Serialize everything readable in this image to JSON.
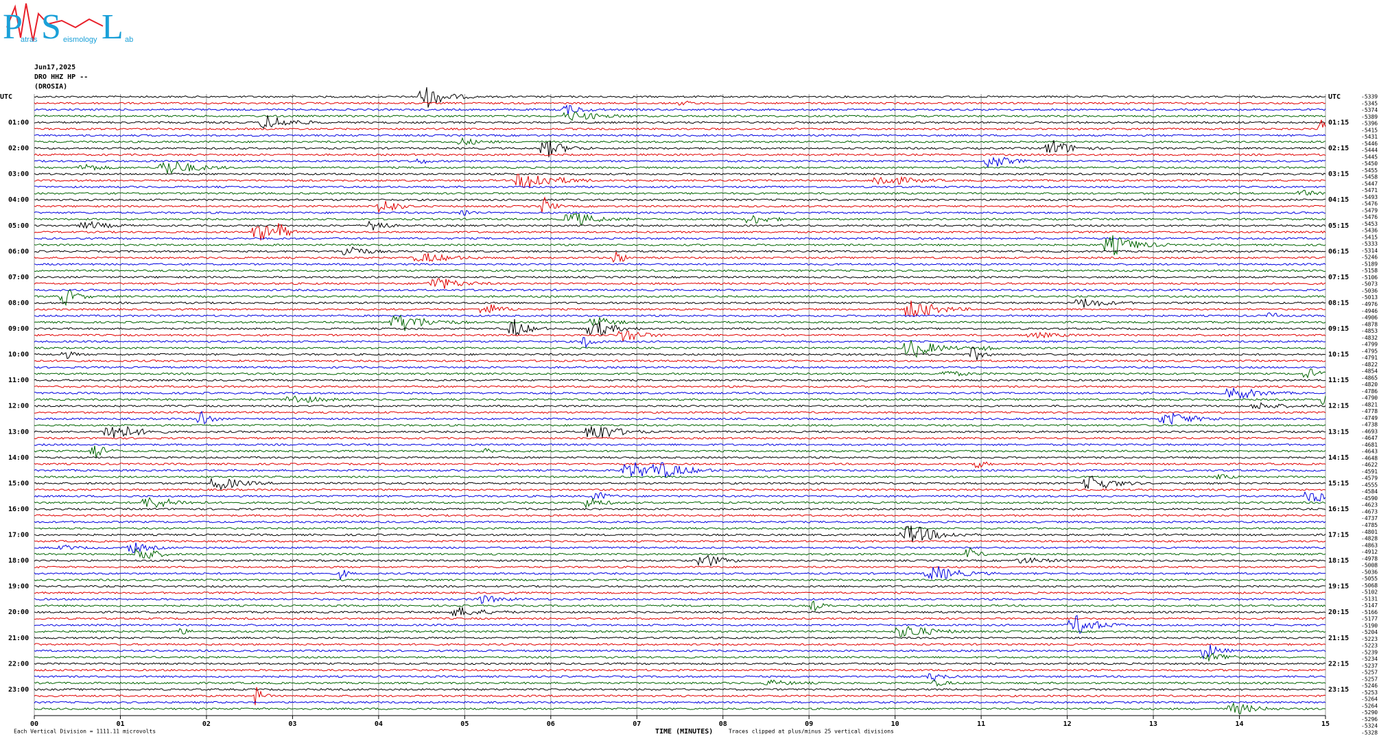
{
  "logo": {
    "letters": [
      "P",
      "S",
      "L"
    ],
    "sub": [
      "atras",
      "eismology",
      "ab"
    ]
  },
  "header": {
    "date": "Jun17,2025",
    "station": "DRO HHZ HP --",
    "site": "(DROSIA)"
  },
  "left_labels": [
    "UTC",
    "01:00",
    "02:00",
    "03:00",
    "04:00",
    "05:00",
    "06:00",
    "07:00",
    "08:00",
    "09:00",
    "10:00",
    "11:00",
    "12:00",
    "13:00",
    "14:00",
    "15:00",
    "16:00",
    "17:00",
    "18:00",
    "19:00",
    "20:00",
    "21:00",
    "22:00",
    "23:00"
  ],
  "right_labels": [
    "UTC",
    "01:15",
    "02:15",
    "03:15",
    "04:15",
    "05:15",
    "06:15",
    "07:15",
    "08:15",
    "09:15",
    "10:15",
    "11:15",
    "12:15",
    "13:15",
    "14:15",
    "15:15",
    "16:15",
    "17:15",
    "18:15",
    "19:15",
    "20:15",
    "21:15",
    "22:15",
    "23:15"
  ],
  "offsets": [
    -5339,
    -5345,
    -5374,
    -5389,
    -5396,
    -5415,
    -5431,
    -5446,
    -5444,
    -5445,
    -5450,
    -5455,
    -5458,
    -5447,
    -5471,
    -5493,
    -5476,
    -5479,
    -5476,
    -5453,
    -5436,
    -5415,
    -5333,
    -5314,
    -5246,
    -5189,
    -5158,
    -5106,
    -5073,
    -5036,
    -5013,
    -4976,
    -4946,
    -4906,
    -4878,
    -4853,
    -4832,
    -4799,
    -4795,
    -4791,
    -4822,
    -4854,
    -4865,
    -4820,
    -4786,
    -4790,
    -4821,
    -4778,
    -4749,
    -4738,
    -4693,
    -4647,
    -4681,
    -4643,
    -4648,
    -4622,
    -4591,
    -4579,
    -4555,
    -4584,
    -4590,
    -4623,
    -4673,
    -4737,
    -4785,
    -4801,
    -4828,
    -4863,
    -4912,
    -4978,
    -5008,
    -5036,
    -5055,
    -5068,
    -5102,
    -5131,
    -5147,
    -5166,
    -5177,
    -5190,
    -5204,
    -5223,
    -5223,
    -5239,
    -5234,
    -5237,
    -5257,
    -5257,
    -5246,
    -5253,
    -5264,
    -5264,
    -5290,
    -5296,
    -5324,
    -5328
  ],
  "x_labels": [
    "00",
    "01",
    "02",
    "03",
    "04",
    "05",
    "06",
    "07",
    "08",
    "09",
    "10",
    "11",
    "12",
    "13",
    "14",
    "15"
  ],
  "footer": {
    "scale": "Each Vertical Division = 1111.11 microvolts",
    "x_title": "TIME (MINUTES)",
    "clip": "Traces clipped at plus/minus 25 vertical divisions"
  }
}
